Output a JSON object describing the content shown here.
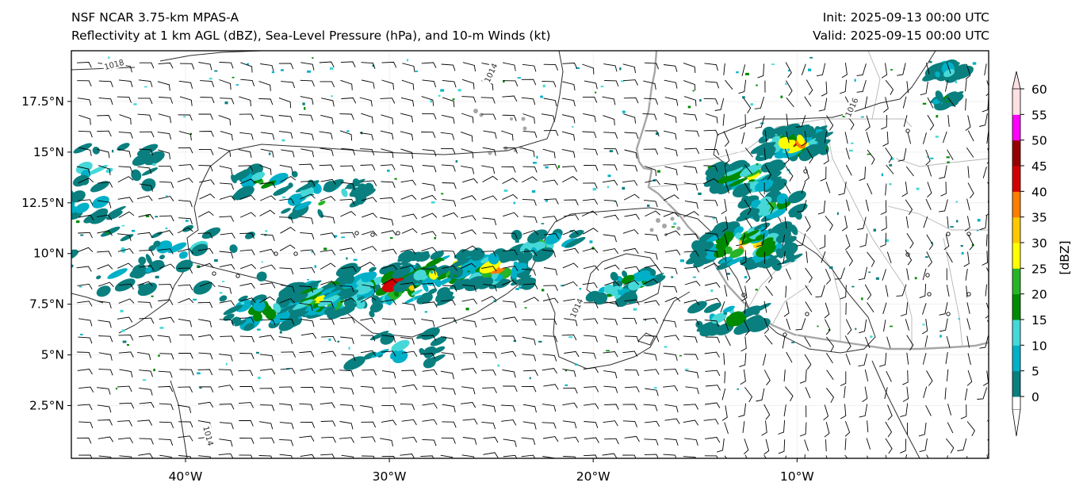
{
  "title": {
    "model": "NSF NCAR 3.75-km MPAS-A",
    "fields": "Reflectivity at 1 km AGL (dBZ), Sea-Level Pressure (hPa), and 10-m Winds (kt)",
    "init": "Init: 2025-09-13 00:00 UTC",
    "valid": "Valid: 2025-09-15 00:00 UTC"
  },
  "map": {
    "lon_range": [
      -45.6,
      -0.6
    ],
    "lat_range": [
      -0.1,
      20.0
    ],
    "lon_ticks": [
      {
        "value": -40,
        "label": "40°W"
      },
      {
        "value": -30,
        "label": "30°W"
      },
      {
        "value": -20,
        "label": "20°W"
      },
      {
        "value": -10,
        "label": "10°W"
      }
    ],
    "lat_ticks": [
      {
        "value": 2.5,
        "label": "2.5°N"
      },
      {
        "value": 5,
        "label": "5°N"
      },
      {
        "value": 7.5,
        "label": "7.5°N"
      },
      {
        "value": 10,
        "label": "10°N"
      },
      {
        "value": 12.5,
        "label": "12.5°N"
      },
      {
        "value": 15,
        "label": "15°N"
      },
      {
        "value": 17.5,
        "label": "17.5°N"
      }
    ],
    "isobar_labels": [
      {
        "text": "1018",
        "lon": -43.5,
        "lat": 19.3
      },
      {
        "text": "1014",
        "lon": -25.0,
        "lat": 18.9
      },
      {
        "text": "1016",
        "lon": -7.3,
        "lat": 17.2
      },
      {
        "text": "1014",
        "lon": -20.8,
        "lat": 7.3
      },
      {
        "text": "1014",
        "lon": -38.9,
        "lat": 1.0
      }
    ]
  },
  "colorbar": {
    "label": "[dBZ]",
    "levels": [
      "0",
      "5",
      "10",
      "15",
      "20",
      "25",
      "30",
      "35",
      "40",
      "45",
      "50",
      "55",
      "60"
    ],
    "colors": [
      "#ffffff",
      "#0a7f7f",
      "#00b0c8",
      "#46d8d8",
      "#008a00",
      "#27b427",
      "#ffff00",
      "#ffc800",
      "#ff7d00",
      "#d20000",
      "#960000",
      "#ff00ff",
      "#ffe0e0"
    ]
  }
}
